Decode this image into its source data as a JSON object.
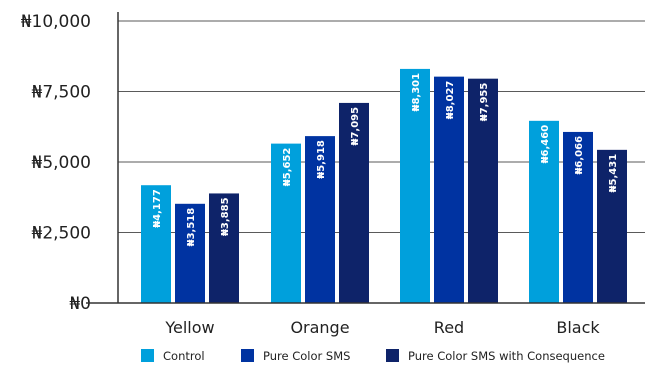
{
  "chart_data": {
    "type": "bar",
    "title": "",
    "xlabel": "",
    "ylabel": "",
    "categories": [
      "Yellow",
      "Orange",
      "Red",
      "Black"
    ],
    "ylim": [
      0,
      10000
    ],
    "yticks": [
      0,
      2500,
      5000,
      7500,
      10000
    ],
    "ytick_labels": [
      "₦0",
      "₦2,500",
      "₦5,000",
      "₦7,500",
      "₦10,000"
    ],
    "grid": true,
    "legend_position": "bottom",
    "series": [
      {
        "name": "Control",
        "color": "#00a0dc",
        "values": [
          4177,
          5652,
          8301,
          6460
        ],
        "labels": [
          "₦4,177",
          "₦5,652",
          "₦8,301",
          "₦6,460"
        ]
      },
      {
        "name": "Pure Color SMS",
        "color": "#0033a1",
        "values": [
          3518,
          5918,
          8027,
          6066
        ],
        "labels": [
          "₦3,518",
          "₦5,918",
          "₦8,027",
          "₦6,066"
        ]
      },
      {
        "name": "Pure Color SMS with Consequence",
        "color": "#0e2369",
        "values": [
          3885,
          7095,
          7955,
          5431
        ],
        "labels": [
          "₦3,885",
          "₦7,095",
          "₦7,955",
          "₦5,431"
        ]
      }
    ]
  }
}
